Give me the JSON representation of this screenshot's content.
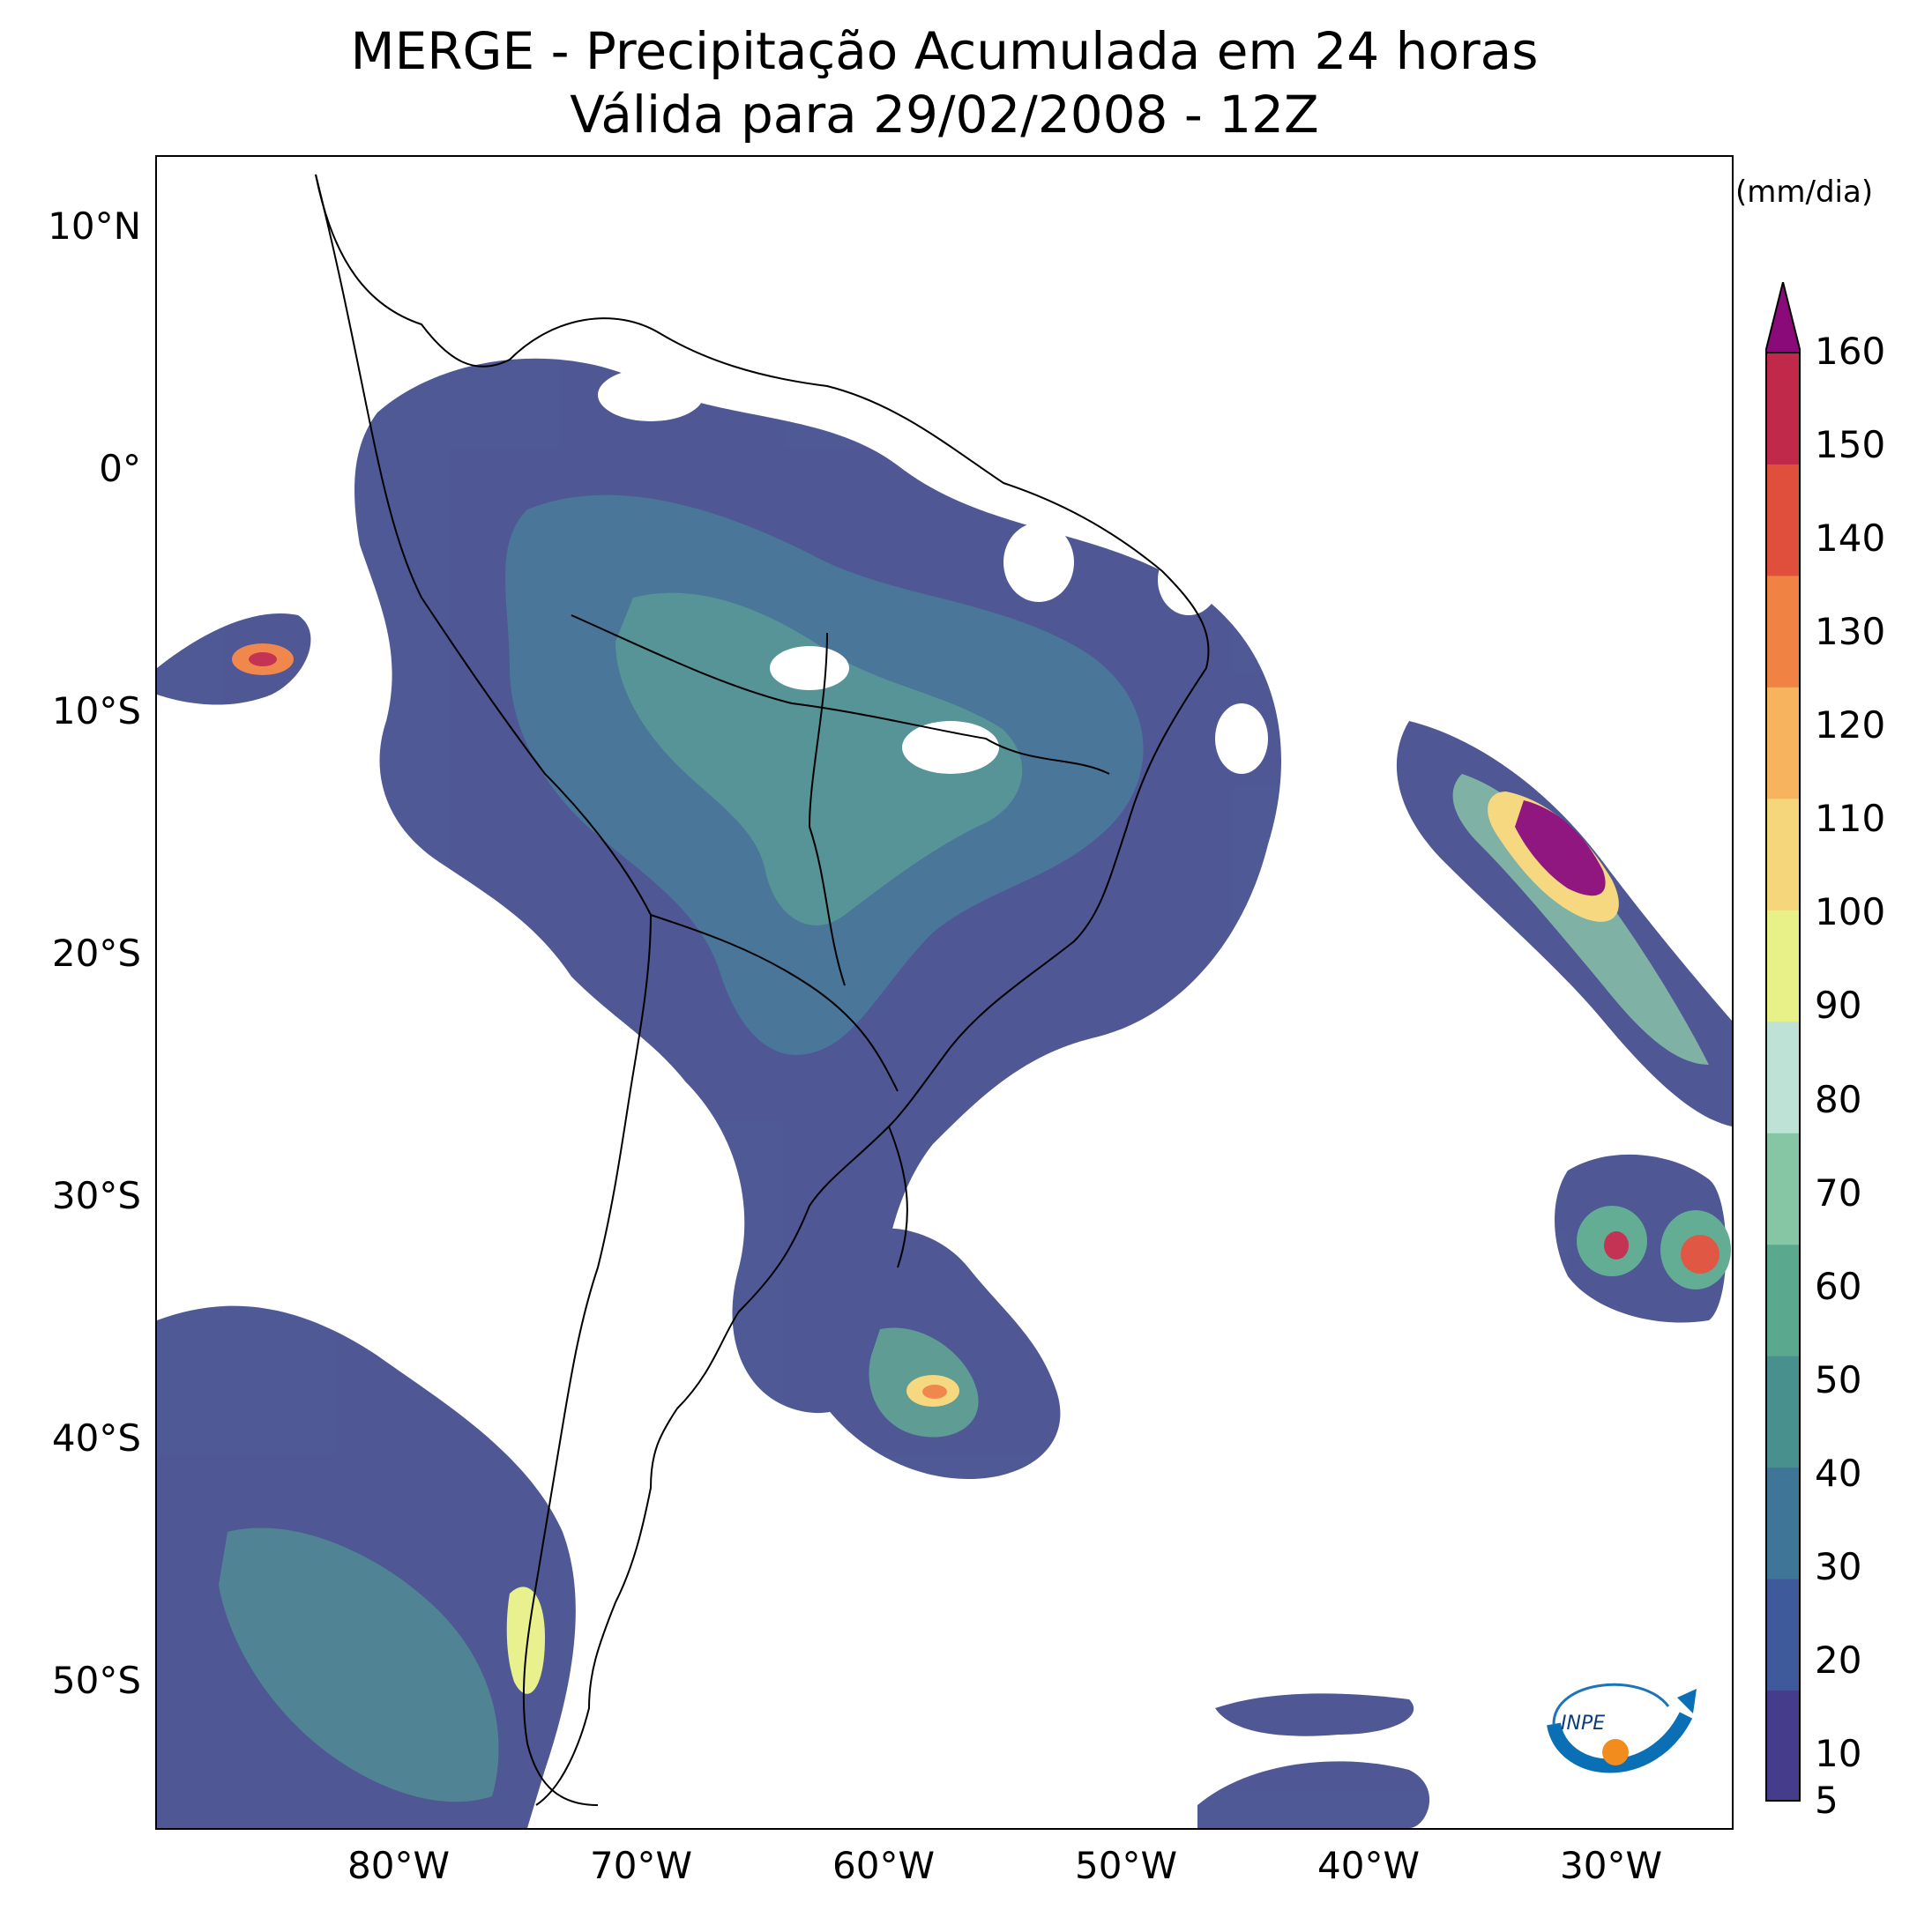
{
  "title": {
    "line1": "MERGE - Precipitação Acumulada em 24 horas",
    "line2": "Válida para 29/02/2008 - 12Z"
  },
  "map": {
    "lon_range": [
      -90,
      -25
    ],
    "lat_range": [
      -56,
      13
    ],
    "lat_ticks": [
      "10°N",
      "0°",
      "10°S",
      "20°S",
      "30°S",
      "40°S",
      "50°S"
    ],
    "lon_ticks": [
      "80°W",
      "70°W",
      "60°W",
      "50°W",
      "40°W",
      "30°W"
    ]
  },
  "colorbar": {
    "unit": "(mm/dia)",
    "ticks": [
      "5",
      "10",
      "20",
      "30",
      "40",
      "50",
      "60",
      "70",
      "80",
      "90",
      "100",
      "110",
      "120",
      "130",
      "140",
      "150",
      "160"
    ],
    "extend": "max",
    "colors": [
      "#453d8c",
      "#3e5a9a",
      "#3f7596",
      "#47908e",
      "#5aa98f",
      "#86c6a5",
      "#bfe2d6",
      "#e8f088",
      "#f6d67a",
      "#f8b35e",
      "#f08244",
      "#df4f3b",
      "#c1294a",
      "#8b0a7a"
    ]
  },
  "logo": {
    "text": "INPE"
  }
}
